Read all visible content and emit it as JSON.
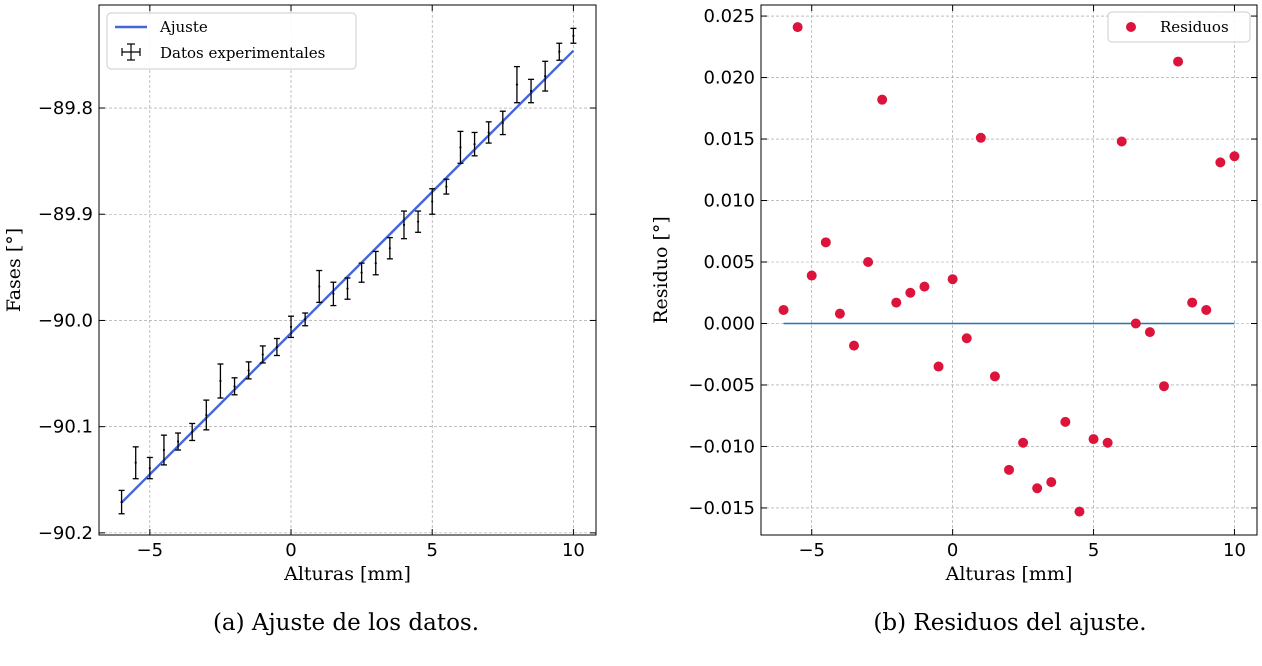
{
  "colors": {
    "fit_line": "#4466dd",
    "error_bars": "#000000",
    "residual_points": "#dc143c",
    "zero_line": "#1f77b4",
    "grid": "#999999"
  },
  "chart_data": [
    {
      "type": "line",
      "panel_caption": "(a) Ajuste de los datos.",
      "xlabel": "Alturas [mm]",
      "ylabel": "Fases [°]",
      "xlim": [
        -6.8,
        10.8
      ],
      "ylim": [
        -90.202,
        -89.703
      ],
      "xticks": [
        -5,
        0,
        5,
        10
      ],
      "xtick_labels": [
        "−5",
        "0",
        "5",
        "10"
      ],
      "yticks": [
        -90.2,
        -90.1,
        -90.0,
        -89.9,
        -89.8
      ],
      "ytick_labels": [
        "−90.2",
        "−90.1",
        "−90.0",
        "−89.9",
        "−89.8"
      ],
      "grid": true,
      "legend": {
        "placement": "top-left",
        "entries": [
          "Ajuste",
          "Datos experimentales"
        ]
      },
      "fit": {
        "name": "Ajuste",
        "x": [
          -6,
          10
        ],
        "y": [
          -90.1715,
          -89.746
        ]
      },
      "data_series": {
        "name": "Datos experimentales",
        "x": [
          -6,
          -5.5,
          -5,
          -4.5,
          -4,
          -3.5,
          -3,
          -2.5,
          -2,
          -1.5,
          -1,
          -0.5,
          0,
          0.5,
          1,
          1.5,
          2,
          2.5,
          3,
          3.5,
          4,
          4.5,
          5,
          5.5,
          6,
          6.5,
          7,
          7.5,
          8,
          8.5,
          9,
          9.5,
          10
        ],
        "y": [
          -90.171,
          -90.134,
          -90.139,
          -90.122,
          -90.114,
          -90.105,
          -90.089,
          -90.057,
          -90.062,
          -90.047,
          -90.032,
          -90.025,
          -90.006,
          -89.999,
          -89.968,
          -89.975,
          -89.97,
          -89.955,
          -89.946,
          -89.932,
          -89.91,
          -89.907,
          -89.888,
          -89.874,
          -89.837,
          -89.834,
          -89.823,
          -89.814,
          -89.778,
          -89.784,
          -89.77,
          -89.747,
          -89.732
        ],
        "yerr": [
          0.011,
          0.015,
          0.01,
          0.014,
          0.008,
          0.008,
          0.014,
          0.016,
          0.008,
          0.008,
          0.008,
          0.008,
          0.01,
          0.006,
          0.015,
          0.011,
          0.01,
          0.009,
          0.011,
          0.01,
          0.013,
          0.01,
          0.012,
          0.007,
          0.015,
          0.011,
          0.01,
          0.011,
          0.017,
          0.011,
          0.014,
          0.008,
          0.007
        ]
      }
    },
    {
      "type": "scatter",
      "panel_caption": "(b) Residuos del ajuste.",
      "xlabel": "Alturas [mm]",
      "ylabel": "Residuo [°]",
      "xlim": [
        -6.8,
        10.8
      ],
      "ylim": [
        -0.0172,
        0.0259
      ],
      "xticks": [
        -5,
        0,
        5,
        10
      ],
      "xtick_labels": [
        "−5",
        "0",
        "5",
        "10"
      ],
      "yticks": [
        -0.015,
        -0.01,
        -0.005,
        0.0,
        0.005,
        0.01,
        0.015,
        0.02,
        0.025
      ],
      "ytick_labels": [
        "−0.015",
        "−0.010",
        "−0.005",
        "0.000",
        "0.005",
        "0.010",
        "0.015",
        "0.020",
        "0.025"
      ],
      "grid": true,
      "legend": {
        "placement": "top-right",
        "entries": [
          "Residuos"
        ]
      },
      "zero_line": {
        "x": [
          -6,
          10
        ],
        "y": [
          0,
          0
        ]
      },
      "series": [
        {
          "name": "Residuos",
          "x": [
            -6,
            -5.5,
            -5,
            -4.5,
            -4,
            -3.5,
            -3,
            -2.5,
            -2,
            -1.5,
            -1,
            -0.5,
            0,
            0.5,
            1,
            1.5,
            2,
            2.5,
            3,
            3.5,
            4,
            4.5,
            5,
            5.5,
            6,
            6.5,
            7,
            7.5,
            8,
            8.5,
            9,
            9.5,
            10
          ],
          "y": [
            0.0011,
            0.0241,
            0.0039,
            0.0066,
            0.0008,
            -0.0018,
            0.005,
            0.0182,
            0.0017,
            0.0025,
            0.003,
            -0.0035,
            0.0036,
            -0.0012,
            0.0151,
            -0.0043,
            -0.0119,
            -0.0097,
            -0.0134,
            -0.0129,
            -0.008,
            -0.0153,
            -0.0094,
            -0.0097,
            0.0148,
            0.0,
            -0.0007,
            -0.0051,
            0.0213,
            0.0017,
            0.0011,
            0.0131,
            0.0136
          ]
        }
      ]
    }
  ]
}
